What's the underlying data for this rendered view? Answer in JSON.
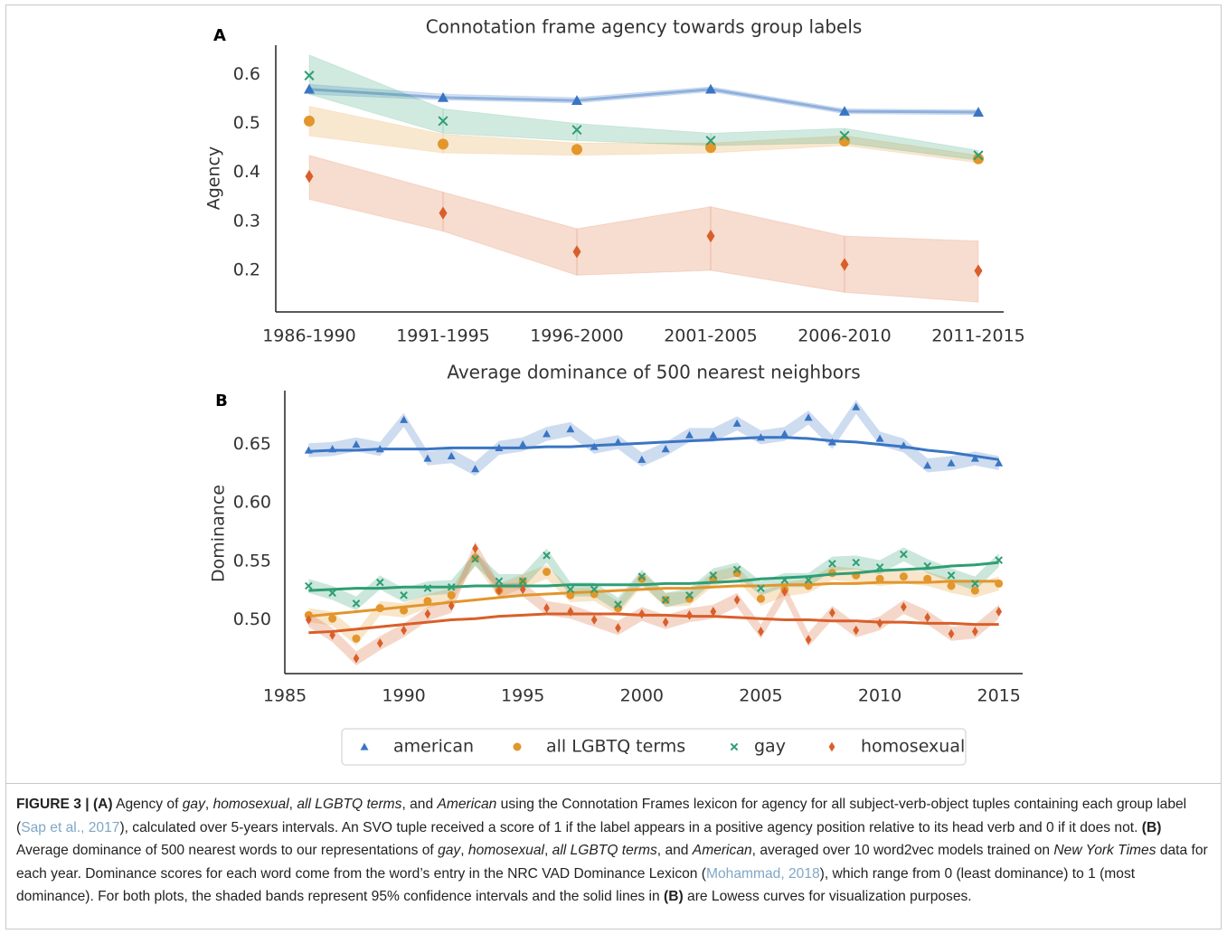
{
  "chart_data": [
    {
      "type": "band-line",
      "panel_label": "A",
      "title": "Connotation frame agency towards group labels",
      "ylabel": "Agency",
      "categories": [
        "1986-1990",
        "1991-1995",
        "1996-2000",
        "2001-2005",
        "2006-2010",
        "2011-2015"
      ],
      "ylim": [
        0.115,
        0.66
      ],
      "yticks": [
        0.2,
        0.3,
        0.4,
        0.5,
        0.6
      ],
      "series": [
        {
          "color": "#3a75c4",
          "marker": "triangle",
          "line": true,
          "values": [
            0.57,
            0.553,
            0.547,
            0.57,
            0.525,
            0.523
          ],
          "lower": [
            0.56,
            0.548,
            0.542,
            0.565,
            0.52,
            0.518
          ],
          "upper": [
            0.58,
            0.56,
            0.553,
            0.575,
            0.53,
            0.528
          ]
        },
        {
          "color": "#e2962b",
          "marker": "circle",
          "values": [
            0.505,
            0.458,
            0.447,
            0.451,
            0.464,
            0.428
          ],
          "lower": [
            0.475,
            0.44,
            0.435,
            0.44,
            0.455,
            0.42
          ],
          "upper": [
            0.535,
            0.478,
            0.46,
            0.46,
            0.475,
            0.435
          ]
        },
        {
          "color": "#2e9e73",
          "marker": "x",
          "values": [
            0.598,
            0.505,
            0.487,
            0.465,
            0.475,
            0.435
          ],
          "lower": [
            0.56,
            0.48,
            0.465,
            0.455,
            0.46,
            0.425
          ],
          "upper": [
            0.64,
            0.53,
            0.5,
            0.48,
            0.49,
            0.445
          ]
        },
        {
          "color": "#d95f2a",
          "marker": "diamond",
          "values": [
            0.392,
            0.317,
            0.238,
            0.27,
            0.212,
            0.199
          ],
          "lower": [
            0.345,
            0.28,
            0.19,
            0.2,
            0.155,
            0.135
          ],
          "upper": [
            0.435,
            0.36,
            0.285,
            0.33,
            0.27,
            0.26
          ]
        }
      ]
    },
    {
      "type": "band-trend",
      "panel_label": "B",
      "title": "Average dominance of 500 nearest neighbors",
      "ylabel": "Dominance",
      "x": [
        1986,
        1987,
        1988,
        1989,
        1990,
        1991,
        1992,
        1993,
        1994,
        1995,
        1996,
        1997,
        1998,
        1999,
        2000,
        2001,
        2002,
        2003,
        2004,
        2005,
        2006,
        2007,
        2008,
        2009,
        2010,
        2011,
        2012,
        2013,
        2014,
        2015
      ],
      "xlim": [
        1985,
        2016
      ],
      "xticks": [
        1985,
        1990,
        1995,
        2000,
        2005,
        2010,
        2015
      ],
      "ylim": [
        0.454,
        0.696
      ],
      "yticks": [
        {
          "value": 0.5,
          "label": "0.50"
        },
        {
          "value": 0.55,
          "label": "0.55"
        },
        {
          "value": 0.6,
          "label": "0.60"
        },
        {
          "value": 0.65,
          "label": "0.65"
        }
      ],
      "legend": "bottom",
      "series": [
        {
          "name": "american",
          "color": "#3a75c4",
          "marker": "triangle",
          "ci": 0.006,
          "values": [
            0.645,
            0.646,
            0.65,
            0.646,
            0.671,
            0.638,
            0.64,
            0.629,
            0.647,
            0.65,
            0.659,
            0.663,
            0.648,
            0.652,
            0.637,
            0.646,
            0.658,
            0.658,
            0.668,
            0.656,
            0.659,
            0.673,
            0.652,
            0.682,
            0.655,
            0.649,
            0.632,
            0.634,
            0.638,
            0.634
          ],
          "trend": [
            0.644,
            0.645,
            0.645,
            0.646,
            0.646,
            0.646,
            0.647,
            0.647,
            0.647,
            0.647,
            0.648,
            0.648,
            0.649,
            0.65,
            0.651,
            0.652,
            0.653,
            0.654,
            0.655,
            0.656,
            0.656,
            0.655,
            0.653,
            0.652,
            0.65,
            0.648,
            0.645,
            0.643,
            0.64,
            0.637
          ]
        },
        {
          "name": "all LGBTQ terms",
          "color": "#e2962b",
          "marker": "circle",
          "ci": 0.006,
          "values": [
            0.504,
            0.501,
            0.484,
            0.51,
            0.508,
            0.516,
            0.521,
            0.553,
            0.525,
            0.533,
            0.541,
            0.521,
            0.522,
            0.51,
            0.535,
            0.517,
            0.518,
            0.535,
            0.54,
            0.518,
            0.526,
            0.529,
            0.54,
            0.538,
            0.535,
            0.537,
            0.535,
            0.529,
            0.525,
            0.531
          ],
          "trend": [
            0.503,
            0.505,
            0.507,
            0.509,
            0.511,
            0.513,
            0.515,
            0.517,
            0.519,
            0.521,
            0.522,
            0.523,
            0.524,
            0.525,
            0.526,
            0.527,
            0.527,
            0.528,
            0.529,
            0.529,
            0.53,
            0.53,
            0.531,
            0.531,
            0.532,
            0.532,
            0.532,
            0.533,
            0.533,
            0.533
          ]
        },
        {
          "name": "gay",
          "color": "#2e9e73",
          "marker": "x",
          "ci": 0.006,
          "values": [
            0.529,
            0.523,
            0.514,
            0.532,
            0.521,
            0.527,
            0.528,
            0.552,
            0.533,
            0.533,
            0.555,
            0.526,
            0.526,
            0.513,
            0.537,
            0.517,
            0.521,
            0.538,
            0.543,
            0.527,
            0.534,
            0.534,
            0.548,
            0.549,
            0.545,
            0.556,
            0.546,
            0.538,
            0.531,
            0.551
          ],
          "trend": [
            0.525,
            0.526,
            0.527,
            0.527,
            0.528,
            0.528,
            0.528,
            0.529,
            0.529,
            0.529,
            0.529,
            0.53,
            0.53,
            0.53,
            0.53,
            0.531,
            0.531,
            0.532,
            0.533,
            0.535,
            0.536,
            0.537,
            0.539,
            0.54,
            0.542,
            0.543,
            0.544,
            0.546,
            0.547,
            0.549
          ]
        },
        {
          "name": "homosexual",
          "color": "#d95f2a",
          "marker": "diamond",
          "ci": 0.006,
          "values": [
            0.5,
            0.487,
            0.467,
            0.48,
            0.491,
            0.505,
            0.512,
            0.561,
            0.525,
            0.526,
            0.51,
            0.507,
            0.5,
            0.493,
            0.505,
            0.498,
            0.504,
            0.507,
            0.517,
            0.49,
            0.524,
            0.483,
            0.506,
            0.491,
            0.497,
            0.511,
            0.502,
            0.488,
            0.49,
            0.507
          ],
          "trend": [
            0.489,
            0.49,
            0.492,
            0.494,
            0.496,
            0.498,
            0.5,
            0.501,
            0.503,
            0.504,
            0.505,
            0.505,
            0.505,
            0.505,
            0.504,
            0.504,
            0.503,
            0.503,
            0.502,
            0.501,
            0.5,
            0.5,
            0.499,
            0.499,
            0.498,
            0.498,
            0.497,
            0.497,
            0.496,
            0.496
          ]
        }
      ]
    }
  ],
  "caption": {
    "runs": [
      {
        "text": "FIGURE 3 | (A)",
        "style": "bold"
      },
      {
        "text": " Agency of "
      },
      {
        "text": "gay",
        "style": "italic"
      },
      {
        "text": ", "
      },
      {
        "text": "homosexual",
        "style": "italic"
      },
      {
        "text": ", "
      },
      {
        "text": "all LGBTQ terms",
        "style": "italic"
      },
      {
        "text": ", and "
      },
      {
        "text": "American",
        "style": "italic"
      },
      {
        "text": " using the Connotation Frames lexicon for agency for all subject-verb-object tuples containing each group label ("
      },
      {
        "text": "Sap et al., 2017",
        "style": "link"
      },
      {
        "text": "), calculated over 5-years intervals. An SVO tuple received a score of 1 if the label appears in a positive agency position relative to its head verb and 0 if it does not. "
      },
      {
        "text": "(B)",
        "style": "bold"
      },
      {
        "text": " Average dominance of 500 nearest words to our representations of "
      },
      {
        "text": "gay",
        "style": "italic"
      },
      {
        "text": ", "
      },
      {
        "text": "homosexual",
        "style": "italic"
      },
      {
        "text": ", "
      },
      {
        "text": "all LGBTQ terms",
        "style": "italic"
      },
      {
        "text": ", and "
      },
      {
        "text": "American",
        "style": "italic"
      },
      {
        "text": ", averaged over 10 word2vec models trained on "
      },
      {
        "text": "New York Times",
        "style": "italic"
      },
      {
        "text": " data for each year. Dominance scores for each word come from the word’s entry in the NRC VAD Dominance Lexicon ("
      },
      {
        "text": "Mohammad, 2018",
        "style": "link"
      },
      {
        "text": "), which range from 0 (least dominance) to 1 (most dominance). For both plots, the shaded bands represent 95% confidence intervals and the solid lines in "
      },
      {
        "text": "(B)",
        "style": "bold"
      },
      {
        "text": " are Lowess curves for visualization purposes."
      }
    ]
  }
}
